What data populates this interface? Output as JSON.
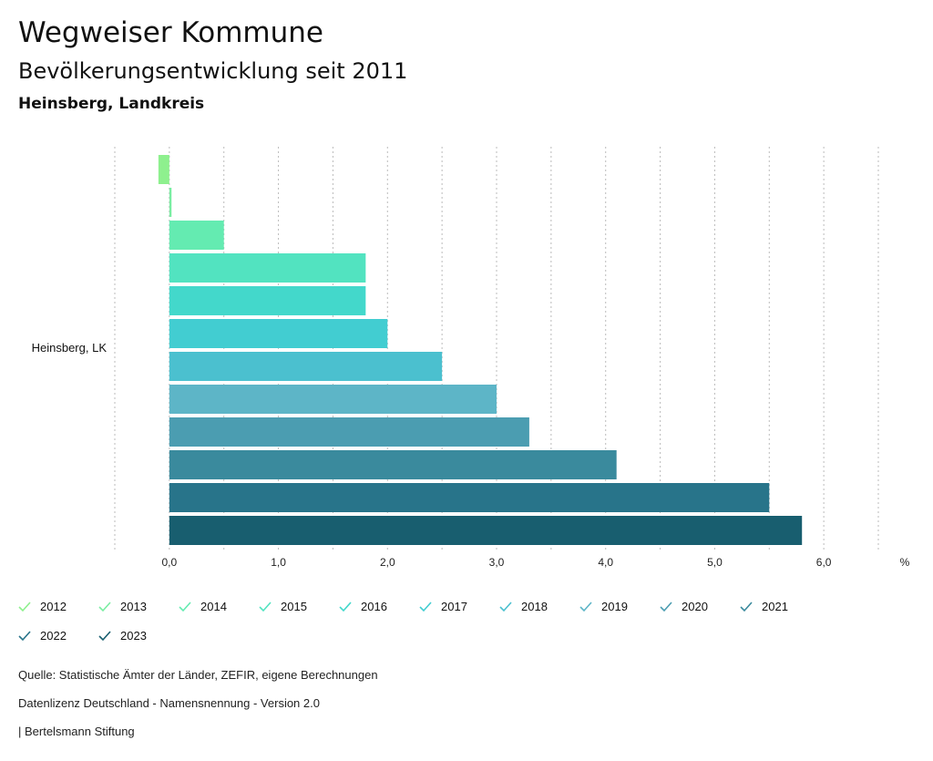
{
  "header": {
    "title": "Wegweiser Kommune",
    "subtitle": "Bevölkerungsentwicklung seit 2011",
    "region": "Heinsberg, Landkreis"
  },
  "chart_data": {
    "type": "bar",
    "orientation": "horizontal",
    "categories": [
      "Heinsberg, LK"
    ],
    "series": [
      {
        "name": "2012",
        "values": [
          -0.1
        ],
        "color": "#8ef08e"
      },
      {
        "name": "2013",
        "values": [
          0.02
        ],
        "color": "#7aeda2"
      },
      {
        "name": "2014",
        "values": [
          0.5
        ],
        "color": "#64ebb1"
      },
      {
        "name": "2015",
        "values": [
          1.8
        ],
        "color": "#52e3c0"
      },
      {
        "name": "2016",
        "values": [
          1.8
        ],
        "color": "#43d8cb"
      },
      {
        "name": "2017",
        "values": [
          2.0
        ],
        "color": "#42cdd1"
      },
      {
        "name": "2018",
        "values": [
          2.5
        ],
        "color": "#4bc0cf"
      },
      {
        "name": "2019",
        "values": [
          3.0
        ],
        "color": "#5db5c7"
      },
      {
        "name": "2020",
        "values": [
          3.3
        ],
        "color": "#4b9db1"
      },
      {
        "name": "2021",
        "values": [
          4.1
        ],
        "color": "#3a8a9d"
      },
      {
        "name": "2022",
        "values": [
          5.5
        ],
        "color": "#28748a"
      },
      {
        "name": "2023",
        "values": [
          5.8
        ],
        "color": "#185e6f"
      }
    ],
    "xlim": [
      -0.5,
      6.5
    ],
    "xticks": [
      "0,0",
      "1,0",
      "2,0",
      "3,0",
      "4,0",
      "5,0",
      "6,0"
    ],
    "xtick_values": [
      0,
      1,
      2,
      3,
      4,
      5,
      6
    ],
    "unit_label": "%",
    "grid": true,
    "legend_position": "bottom"
  },
  "footer": {
    "source": "Quelle: Statistische Ämter der Länder, ZEFIR, eigene Berechnungen",
    "license": "Datenlizenz Deutschland - Namensnennung - Version 2.0",
    "publisher": "| Bertelsmann Stiftung"
  }
}
